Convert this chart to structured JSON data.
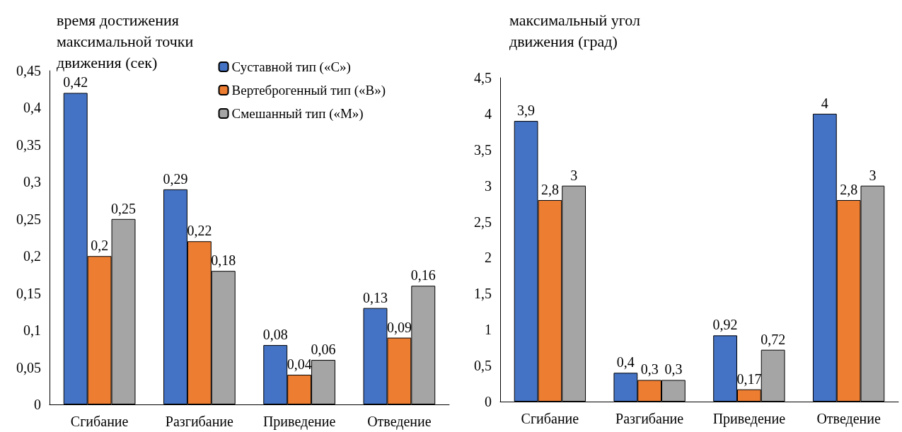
{
  "chart_data": [
    {
      "type": "bar",
      "title": "время достижения максимальной точки движения (сек)",
      "categories": [
        "Сгибание",
        "Разгибание",
        "Приведение",
        "Отведение"
      ],
      "series": [
        {
          "name": "Суставной тип («С»)",
          "color": "#4472c4",
          "values": [
            0.42,
            0.29,
            0.08,
            0.13
          ],
          "value_labels": [
            "0,42",
            "0,29",
            "0,08",
            "0,13"
          ]
        },
        {
          "name": "Вертеброгенный тип («В»)",
          "color": "#ed7d31",
          "values": [
            0.2,
            0.22,
            0.04,
            0.09
          ],
          "value_labels": [
            "0,2",
            "0,22",
            "0,04",
            "0,09"
          ]
        },
        {
          "name": "Смешанный тип («М»)",
          "color": "#a5a5a5",
          "values": [
            0.25,
            0.18,
            0.06,
            0.16
          ],
          "value_labels": [
            "0,25",
            "0,18",
            "0,06",
            "0,16"
          ]
        }
      ],
      "ylim": [
        0,
        0.45
      ],
      "yticks": [
        0,
        {
          "value": 0.05,
          "label": "0,05"
        },
        {
          "value": 0.1,
          "label": "0,1"
        },
        {
          "value": 0.15,
          "label": "0,15"
        },
        {
          "value": 0.2,
          "label": "0,2"
        },
        {
          "value": 0.25,
          "label": "0,25"
        },
        {
          "value": 0.3,
          "label": "0,3"
        },
        {
          "value": 0.35,
          "label": "0,35"
        },
        {
          "value": 0.4,
          "label": "0,4"
        },
        {
          "value": 0.45,
          "label": "0,45"
        }
      ],
      "grid": false,
      "legend": "top right"
    },
    {
      "type": "bar",
      "title": "максимальный угол движения (град)",
      "categories": [
        "Сгибание",
        "Разгибание",
        "Приведение",
        "Отведение"
      ],
      "series": [
        {
          "color": "#4472c4",
          "values": [
            3.9,
            0.4,
            0.92,
            4
          ],
          "value_labels": [
            "3,9",
            "0,4",
            "0,92",
            "4"
          ]
        },
        {
          "color": "#ed7d31",
          "values": [
            2.8,
            0.3,
            0.17,
            2.8
          ],
          "value_labels": [
            "2,8",
            "0,3",
            "0,17",
            "2,8"
          ]
        },
        {
          "color": "#a5a5a5",
          "values": [
            3,
            0.3,
            0.72,
            3
          ],
          "value_labels": [
            "3",
            "0,3",
            "0,72",
            "3"
          ]
        }
      ],
      "ylim": [
        0,
        4.5
      ],
      "yticks": [
        0,
        {
          "value": 0.5,
          "label": "0,5"
        },
        1,
        {
          "value": 1.5,
          "label": "1,5"
        },
        2,
        {
          "value": 2.5,
          "label": "2,5"
        },
        3,
        {
          "value": 3.5,
          "label": "3,5"
        },
        4,
        {
          "value": 4.5,
          "label": "4,5"
        }
      ],
      "grid": false,
      "legend": false
    }
  ]
}
